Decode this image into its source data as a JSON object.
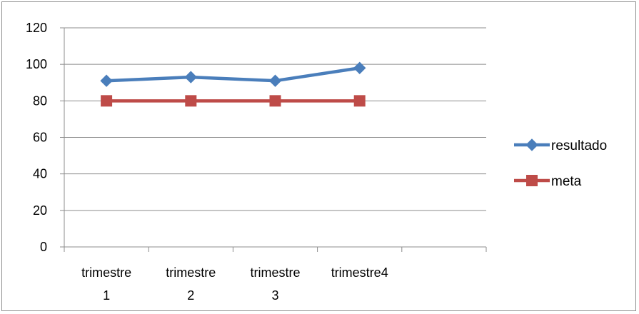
{
  "chart_data": {
    "type": "line",
    "categories": [
      [
        "trimestre",
        "1"
      ],
      [
        "trimestre",
        "2"
      ],
      [
        "trimestre",
        "3"
      ],
      [
        "trimestre4"
      ]
    ],
    "category_slots": 5,
    "ylim": [
      0,
      120
    ],
    "yticks": [
      "0",
      "20",
      "40",
      "60",
      "80",
      "100",
      "120"
    ],
    "grid": true,
    "legend_position": "right",
    "series": [
      {
        "name": "resultado",
        "color": "#4a7ebb",
        "marker": "diamond",
        "values": [
          91,
          93,
          91,
          98
        ]
      },
      {
        "name": "meta",
        "color": "#be4b48",
        "marker": "square",
        "values": [
          80,
          80,
          80,
          80
        ]
      }
    ]
  }
}
